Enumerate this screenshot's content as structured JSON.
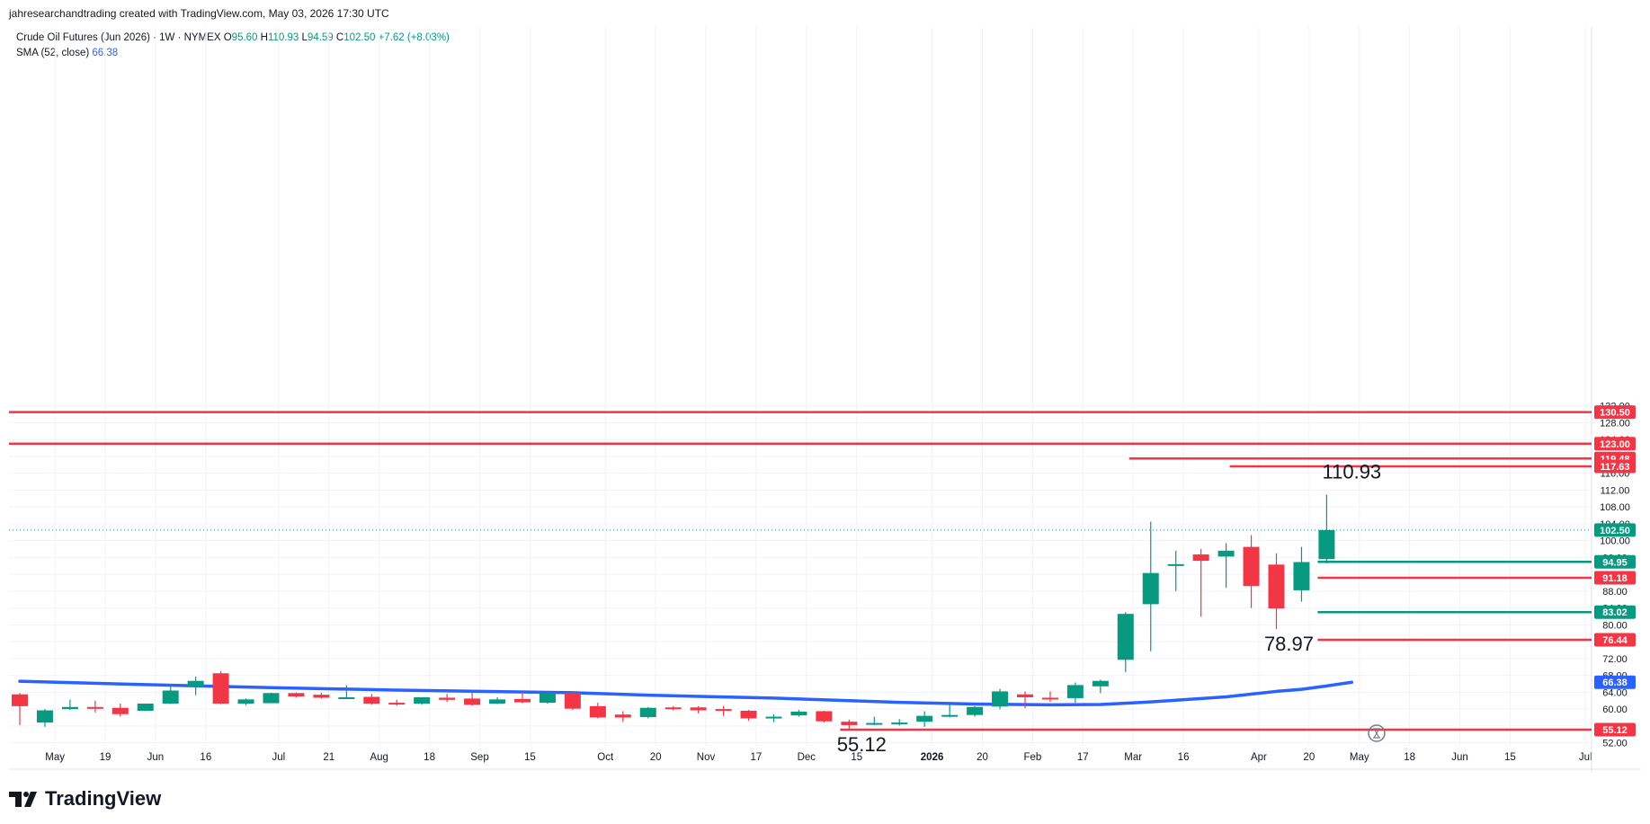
{
  "header": {
    "credit": "jahresearchandtrading created with TradingView.com, May 03, 2026 17:30 UTC"
  },
  "legend": {
    "symbol": "Crude Oil Futures (Jun 2026) · 1W · NYMEX",
    "o_label": "O",
    "o": "95.60",
    "h_label": "H",
    "h": "110.93",
    "l_label": "L",
    "l": "94.59",
    "c_label": "C",
    "c": "102.50",
    "change": "+7.62 (+8.03%)",
    "sma_label": "SMA (52, close)",
    "sma_value": "66.38"
  },
  "footer": {
    "brand": "TradingView"
  },
  "colors": {
    "up": "#089981",
    "down": "#f23645",
    "sma": "#2962ff",
    "grid": "#f0f3fa",
    "text": "#131722"
  },
  "chart_data": {
    "type": "candlestick",
    "interval": "1W",
    "y_axis": {
      "min": 50,
      "max": 133,
      "ticks": [
        "52.00",
        "56.00",
        "60.00",
        "64.00",
        "68.00",
        "72.00",
        "76.00",
        "80.00",
        "84.00",
        "88.00",
        "92.00",
        "96.00",
        "100.00",
        "104.00",
        "108.00",
        "112.00",
        "116.00",
        "120.00",
        "124.00",
        "128.00",
        "132.00"
      ]
    },
    "x_axis": {
      "labels": [
        {
          "i": 1.4,
          "t": "May"
        },
        {
          "i": 3.4,
          "t": "19"
        },
        {
          "i": 5.4,
          "t": "Jun"
        },
        {
          "i": 7.4,
          "t": "16"
        },
        {
          "i": 10.3,
          "t": "Jul"
        },
        {
          "i": 12.3,
          "t": "21"
        },
        {
          "i": 14.3,
          "t": "Aug"
        },
        {
          "i": 16.3,
          "t": "18"
        },
        {
          "i": 18.3,
          "t": "Sep"
        },
        {
          "i": 20.3,
          "t": "15"
        },
        {
          "i": 23.3,
          "t": "Oct"
        },
        {
          "i": 25.3,
          "t": "20"
        },
        {
          "i": 27.3,
          "t": "Nov"
        },
        {
          "i": 29.3,
          "t": "17"
        },
        {
          "i": 31.3,
          "t": "Dec"
        },
        {
          "i": 33.3,
          "t": "15"
        },
        {
          "i": 36.3,
          "t": "2026",
          "bold": true
        },
        {
          "i": 38.3,
          "t": "20"
        },
        {
          "i": 40.3,
          "t": "Feb"
        },
        {
          "i": 42.3,
          "t": "17"
        },
        {
          "i": 44.3,
          "t": "Mar"
        },
        {
          "i": 46.3,
          "t": "16"
        },
        {
          "i": 49.3,
          "t": "Apr"
        },
        {
          "i": 51.3,
          "t": "20"
        },
        {
          "i": 53.3,
          "t": "May"
        },
        {
          "i": 55.3,
          "t": "18"
        },
        {
          "i": 57.3,
          "t": "Jun"
        },
        {
          "i": 59.3,
          "t": "15"
        },
        {
          "i": 62.3,
          "t": "Jul"
        }
      ]
    },
    "candles": [
      {
        "o": 63.5,
        "h": 63.8,
        "l": 56.2,
        "c": 60.7
      },
      {
        "o": 56.8,
        "h": 60.0,
        "l": 55.8,
        "c": 59.7
      },
      {
        "o": 60.0,
        "h": 62.2,
        "l": 59.8,
        "c": 60.5
      },
      {
        "o": 60.5,
        "h": 62.0,
        "l": 59.2,
        "c": 60.4
      },
      {
        "o": 60.3,
        "h": 61.3,
        "l": 58.2,
        "c": 58.8
      },
      {
        "o": 59.6,
        "h": 61.3,
        "l": 59.5,
        "c": 61.3
      },
      {
        "o": 61.3,
        "h": 66.0,
        "l": 61.2,
        "c": 64.4
      },
      {
        "o": 65.3,
        "h": 67.7,
        "l": 63.3,
        "c": 66.7
      },
      {
        "o": 68.5,
        "h": 69.0,
        "l": 61.2,
        "c": 61.3
      },
      {
        "o": 61.3,
        "h": 62.5,
        "l": 60.9,
        "c": 62.3
      },
      {
        "o": 61.4,
        "h": 63.9,
        "l": 61.4,
        "c": 63.8
      },
      {
        "o": 63.8,
        "h": 63.9,
        "l": 62.7,
        "c": 63.0
      },
      {
        "o": 63.4,
        "h": 63.9,
        "l": 62.5,
        "c": 62.7
      },
      {
        "o": 62.8,
        "h": 65.7,
        "l": 62.6,
        "c": 62.8
      },
      {
        "o": 62.9,
        "h": 63.6,
        "l": 61.0,
        "c": 61.3
      },
      {
        "o": 61.5,
        "h": 62.2,
        "l": 60.8,
        "c": 61.3
      },
      {
        "o": 61.3,
        "h": 62.8,
        "l": 61.0,
        "c": 62.8
      },
      {
        "o": 62.7,
        "h": 63.6,
        "l": 61.7,
        "c": 62.2
      },
      {
        "o": 62.5,
        "h": 63.9,
        "l": 60.8,
        "c": 61.0
      },
      {
        "o": 61.3,
        "h": 62.8,
        "l": 61.2,
        "c": 62.3
      },
      {
        "o": 62.4,
        "h": 64.0,
        "l": 61.4,
        "c": 61.6
      },
      {
        "o": 61.5,
        "h": 64.0,
        "l": 61.3,
        "c": 63.8
      },
      {
        "o": 63.8,
        "h": 64.0,
        "l": 59.8,
        "c": 60.1
      },
      {
        "o": 60.7,
        "h": 61.5,
        "l": 57.8,
        "c": 58.0
      },
      {
        "o": 58.7,
        "h": 59.5,
        "l": 57.0,
        "c": 58.0
      },
      {
        "o": 58.1,
        "h": 60.5,
        "l": 57.8,
        "c": 60.3
      },
      {
        "o": 60.4,
        "h": 60.7,
        "l": 59.7,
        "c": 60.0
      },
      {
        "o": 60.4,
        "h": 60.7,
        "l": 59.0,
        "c": 59.7
      },
      {
        "o": 60.0,
        "h": 60.7,
        "l": 58.4,
        "c": 59.7
      },
      {
        "o": 59.6,
        "h": 59.8,
        "l": 57.2,
        "c": 57.8
      },
      {
        "o": 57.8,
        "h": 58.8,
        "l": 56.9,
        "c": 58.2
      },
      {
        "o": 58.5,
        "h": 59.8,
        "l": 58.2,
        "c": 59.4
      },
      {
        "o": 59.5,
        "h": 59.6,
        "l": 56.8,
        "c": 57.1
      },
      {
        "o": 57.0,
        "h": 57.5,
        "l": 55.12,
        "c": 56.2
      },
      {
        "o": 56.4,
        "h": 58.2,
        "l": 56.2,
        "c": 56.7
      },
      {
        "o": 56.6,
        "h": 57.6,
        "l": 56.1,
        "c": 56.8
      },
      {
        "o": 57.0,
        "h": 59.5,
        "l": 55.8,
        "c": 58.4
      },
      {
        "o": 58.2,
        "h": 61.0,
        "l": 58.0,
        "c": 58.6
      },
      {
        "o": 58.6,
        "h": 60.7,
        "l": 58.2,
        "c": 60.5
      },
      {
        "o": 60.6,
        "h": 64.8,
        "l": 60.0,
        "c": 64.2
      },
      {
        "o": 63.5,
        "h": 64.2,
        "l": 60.2,
        "c": 62.8
      },
      {
        "o": 62.7,
        "h": 64.2,
        "l": 61.7,
        "c": 62.5
      },
      {
        "o": 62.6,
        "h": 66.3,
        "l": 61.5,
        "c": 65.7
      },
      {
        "o": 65.4,
        "h": 67.0,
        "l": 63.8,
        "c": 66.7
      },
      {
        "o": 71.7,
        "h": 83.0,
        "l": 68.8,
        "c": 82.6
      },
      {
        "o": 84.9,
        "h": 104.5,
        "l": 73.7,
        "c": 92.3
      },
      {
        "o": 94.1,
        "h": 97.6,
        "l": 88.0,
        "c": 94.4
      },
      {
        "o": 96.7,
        "h": 98.0,
        "l": 81.9,
        "c": 95.2
      },
      {
        "o": 96.2,
        "h": 99.4,
        "l": 88.8,
        "c": 97.6
      },
      {
        "o": 98.5,
        "h": 101.3,
        "l": 84.0,
        "c": 89.2
      },
      {
        "o": 94.3,
        "h": 97.0,
        "l": 78.97,
        "c": 83.9
      },
      {
        "o": 88.2,
        "h": 98.5,
        "l": 85.5,
        "c": 94.9
      },
      {
        "o": 95.6,
        "h": 110.93,
        "l": 94.59,
        "c": 102.5
      }
    ],
    "sma": {
      "name": "SMA (52, close)",
      "points": [
        [
          0,
          66.6
        ],
        [
          5,
          65.8
        ],
        [
          10,
          65.1
        ],
        [
          15,
          64.5
        ],
        [
          22,
          63.9
        ],
        [
          25,
          63.3
        ],
        [
          30,
          62.6
        ],
        [
          35,
          61.6
        ],
        [
          38,
          61.2
        ],
        [
          41,
          61.0
        ],
        [
          43,
          61.1
        ],
        [
          45,
          61.7
        ],
        [
          48,
          62.9
        ],
        [
          50,
          64.2
        ],
        [
          51,
          64.7
        ],
        [
          52,
          65.5
        ],
        [
          53,
          66.38
        ]
      ]
    },
    "current_price": 102.5,
    "horizontal_lines": [
      {
        "value": 130.5,
        "label": "130.50",
        "color": "#f23645",
        "from": -1
      },
      {
        "value": 123.0,
        "label": "123.00",
        "color": "#f23645",
        "from": -1
      },
      {
        "value": 119.48,
        "label": "119.48",
        "color": "#f23645",
        "from": 44.5
      },
      {
        "value": 117.63,
        "label": "117.63",
        "color": "#f23645",
        "from": 48.5
      },
      {
        "value": 94.95,
        "label": "94.95",
        "color": "#089981",
        "from": 52
      },
      {
        "value": 91.18,
        "label": "91.18",
        "color": "#f23645",
        "from": 52
      },
      {
        "value": 83.02,
        "label": "83.02",
        "color": "#089981",
        "from": 52
      },
      {
        "value": 76.44,
        "label": "76.44",
        "color": "#f23645",
        "from": 52
      },
      {
        "value": 55.12,
        "label": "55.12",
        "color": "#f23645",
        "from": 33
      }
    ],
    "price_tags": [
      {
        "value": 102.5,
        "label": "102.50",
        "color": "#089981"
      },
      {
        "value": 66.38,
        "label": "66.38",
        "color": "#2962ff"
      }
    ],
    "annotations": [
      {
        "i": 53,
        "value": 110.93,
        "text": "110.93",
        "pos": "above"
      },
      {
        "i": 50.5,
        "value": 78.97,
        "text": "78.97",
        "pos": "below"
      },
      {
        "i": 33.5,
        "value": 55.12,
        "text": "55.12",
        "pos": "below"
      }
    ]
  }
}
